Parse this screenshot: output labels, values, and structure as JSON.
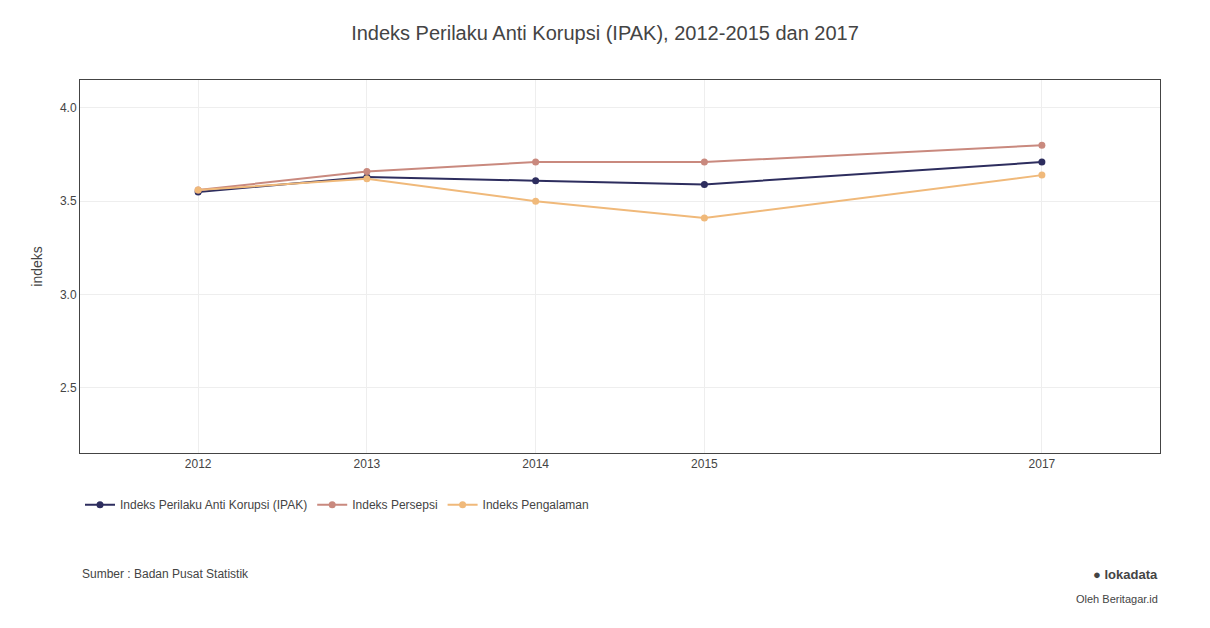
{
  "chart_data": {
    "type": "line",
    "title": "Indeks Perilaku Anti Korupsi (IPAK), 2012-2015 dan 2017",
    "y_label": "indeks",
    "x": [
      2012,
      2013,
      2014,
      2015,
      2017
    ],
    "series": [
      {
        "name": "Indeks Perilaku Anti Korupsi (IPAK)",
        "color": "#2d2d5e",
        "values": [
          3.55,
          3.63,
          3.61,
          3.59,
          3.71
        ]
      },
      {
        "name": "Indeks Persepsi",
        "color": "#c9897e",
        "values": [
          3.56,
          3.66,
          3.71,
          3.71,
          3.8
        ]
      },
      {
        "name": "Indeks Pengalaman",
        "color": "#f0b97a",
        "values": [
          3.56,
          3.62,
          3.5,
          3.41,
          3.64
        ]
      }
    ],
    "xlim": [
      2011.3,
      2017.7
    ],
    "xticks": [
      2012,
      2013,
      2014,
      2015,
      2017
    ],
    "ylim": [
      2.15,
      4.15
    ],
    "yticks": [
      2.5,
      {
        "value": 3.0,
        "label": "3.0"
      },
      3.5,
      {
        "value": 4.0,
        "label": "4.0"
      }
    ],
    "grid": true,
    "legend": "bottom",
    "marker": "circle",
    "line_style": "solid",
    "annotations": [
      "Sumber : Badan Pusat Statistik",
      "● lokadata",
      "Oleh Beritagar.id"
    ]
  }
}
